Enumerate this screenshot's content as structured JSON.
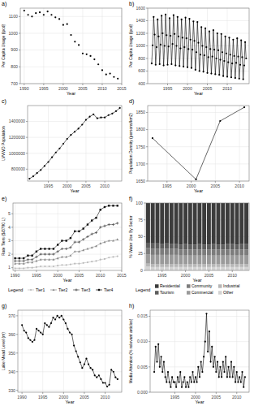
{
  "chart_data": [
    {
      "type": "scatter",
      "title": "a)",
      "x_label": "Year",
      "y_label": "Per Capita Usage (lpcd)",
      "color": "#000000",
      "grid": true,
      "x": [
        1990,
        1991,
        1992,
        1993,
        1994,
        1995,
        1996,
        1997,
        1998,
        1999,
        2000,
        2001,
        2002,
        2003,
        2004,
        2005,
        2006,
        2007,
        2008,
        2009,
        2010,
        2011,
        2012,
        2013,
        2014
      ],
      "values": [
        1135,
        1110,
        1100,
        1120,
        1125,
        1110,
        1130,
        1110,
        1095,
        1085,
        1050,
        1055,
        990,
        950,
        930,
        880,
        875,
        865,
        845,
        815,
        780,
        755,
        760,
        740,
        730
      ],
      "xlim": [
        1989,
        2015
      ],
      "xticks": [
        1990,
        1995,
        2000,
        2005,
        2010,
        2015
      ],
      "ylim": [
        700,
        1150
      ],
      "yticks": [
        700,
        800,
        900,
        1000,
        1100
      ]
    },
    {
      "type": "line",
      "title": "b)",
      "x_label": "Year",
      "y_label": "Per Capita Usage (lpcd)",
      "color": "#000000",
      "marker": "circle",
      "grid": true,
      "x": [
        1991,
        1991.25,
        1991.5,
        1991.75,
        1992,
        1992.25,
        1992.5,
        1992.75,
        1993,
        1993.25,
        1993.5,
        1993.75,
        1994,
        1994.25,
        1994.5,
        1994.75,
        1995,
        1995.25,
        1995.5,
        1995.75,
        1996,
        1996.25,
        1996.5,
        1996.75,
        1997,
        1997.25,
        1997.5,
        1997.75,
        1998,
        1998.25,
        1998.5,
        1998.75,
        1999,
        1999.25,
        1999.5,
        1999.75,
        2000,
        2000.25,
        2000.5,
        2000.75,
        2001,
        2001.25,
        2001.5,
        2001.75,
        2002,
        2002.25,
        2002.5,
        2002.75,
        2003,
        2003.25,
        2003.5,
        2003.75,
        2004,
        2004.25,
        2004.5,
        2004.75,
        2005,
        2005.25,
        2005.5,
        2005.75,
        2006,
        2006.25,
        2006.5,
        2006.75,
        2007,
        2007.25,
        2007.5,
        2007.75,
        2008,
        2008.25,
        2008.5,
        2008.75,
        2009,
        2009.25,
        2009.5,
        2009.75,
        2010,
        2010.25,
        2010.5,
        2010.75,
        2011,
        2011.25,
        2011.5,
        2011.75,
        2012,
        2012.25,
        2012.5,
        2012.75,
        2013,
        2013.25,
        2013.5,
        2013.75,
        2014,
        2014.25,
        2014.5,
        2014.75
      ],
      "values": [
        720,
        1010,
        1460,
        1180,
        700,
        980,
        1420,
        1150,
        710,
        1020,
        1480,
        1200,
        690,
        1000,
        1500,
        1170,
        700,
        990,
        1440,
        1160,
        710,
        1030,
        1490,
        1190,
        690,
        1000,
        1460,
        1150,
        680,
        960,
        1420,
        1130,
        670,
        980,
        1450,
        1120,
        660,
        950,
        1430,
        1100,
        650,
        940,
        1390,
        1080,
        620,
        900,
        1380,
        1050,
        600,
        860,
        1300,
        1000,
        590,
        850,
        1280,
        980,
        570,
        820,
        1230,
        950,
        560,
        830,
        1250,
        940,
        550,
        800,
        1200,
        930,
        540,
        780,
        1190,
        900,
        520,
        760,
        1150,
        880,
        510,
        740,
        1130,
        860,
        500,
        720,
        1100,
        840,
        490,
        730,
        1120,
        830,
        480,
        700,
        1090,
        820,
        470,
        690,
        1060,
        800
      ],
      "xlim": [
        1990,
        2015.5
      ],
      "xticks": [
        1995,
        2000,
        2005,
        2010
      ],
      "ylim": [
        400,
        1600
      ],
      "yticks": [
        400,
        600,
        800,
        1000,
        1200,
        1400,
        1600
      ]
    },
    {
      "type": "line",
      "title": "c)",
      "x_label": "Year",
      "y_label": "LVVWD Population",
      "color": "#000000",
      "marker": "circle",
      "grid": true,
      "x": [
        1990,
        1991,
        1992,
        1993,
        1994,
        1995,
        1996,
        1997,
        1998,
        1999,
        2000,
        2001,
        2002,
        2003,
        2004,
        2005,
        2006,
        2007,
        2008,
        2009,
        2010,
        2011,
        2012,
        2013,
        2014
      ],
      "values": [
        680000,
        710000,
        750000,
        790000,
        840000,
        890000,
        950000,
        1010000,
        1060000,
        1120000,
        1180000,
        1230000,
        1270000,
        1310000,
        1360000,
        1420000,
        1460000,
        1490000,
        1440000,
        1450000,
        1450000,
        1480000,
        1500000,
        1530000,
        1570000
      ],
      "xlim": [
        1989.5,
        2014.5
      ],
      "xticks": [
        1995,
        2000,
        2005,
        2010
      ],
      "ylim": [
        650000,
        1600000
      ],
      "yticks": [
        800000,
        1000000,
        1200000,
        1400000
      ]
    },
    {
      "type": "line",
      "title": "d)",
      "x_label": "Year",
      "y_label": "Population Density (persons/km2)",
      "color": "#000000",
      "marker": "circle",
      "grid": true,
      "x": [
        1992,
        2001,
        2006,
        2011
      ],
      "values": [
        1775,
        1655,
        1825,
        1865
      ],
      "xlim": [
        1991,
        2012
      ],
      "xticks": [
        1995,
        2000,
        2005,
        2010
      ],
      "ylim": [
        1650,
        1870
      ],
      "yticks": [
        1650,
        1700,
        1750,
        1800,
        1850
      ]
    },
    {
      "type": "line",
      "title": "e)",
      "x_label": "Year",
      "y_label": "Rate Tiers ($/3790 L)",
      "grid": true,
      "legend": "bottom",
      "legend_title": "Legend",
      "x": [
        1990,
        1991,
        1992,
        1993,
        1994,
        1995,
        1996,
        1997,
        1998,
        1999,
        2000,
        2001,
        2002,
        2003,
        2004,
        2005,
        2006,
        2007,
        2008,
        2009,
        2010,
        2011,
        2012,
        2013,
        2014
      ],
      "series": [
        {
          "name": "Tier1",
          "color": "#bbbbbb",
          "marker": "circle",
          "values": [
            0.95,
            0.95,
            0.95,
            1.0,
            1.0,
            1.05,
            1.1,
            1.1,
            1.1,
            1.1,
            1.15,
            1.2,
            1.2,
            1.25,
            1.3,
            1.3,
            1.35,
            1.4,
            1.45,
            1.5,
            1.6,
            1.65,
            1.75,
            1.8,
            1.85
          ]
        },
        {
          "name": "Tier2",
          "color": "#8c8c8c",
          "marker": "triangle",
          "values": [
            1.3,
            1.3,
            1.3,
            1.4,
            1.4,
            1.5,
            1.6,
            1.6,
            1.6,
            1.6,
            1.7,
            1.8,
            1.8,
            1.9,
            2.2,
            2.2,
            2.3,
            2.4,
            2.5,
            2.6,
            2.8,
            2.9,
            3.0,
            3.0,
            3.1
          ]
        },
        {
          "name": "Tier3",
          "color": "#555555",
          "marker": "plus",
          "values": [
            1.5,
            1.5,
            1.5,
            1.6,
            1.6,
            1.8,
            2.0,
            2.0,
            2.0,
            2.0,
            2.2,
            2.4,
            2.4,
            2.5,
            2.9,
            2.9,
            3.1,
            3.3,
            3.5,
            3.6,
            4.0,
            4.1,
            4.2,
            4.2,
            4.3
          ]
        },
        {
          "name": "Tier4",
          "color": "#111111",
          "marker": "square",
          "values": [
            1.7,
            1.7,
            1.7,
            1.9,
            1.9,
            2.2,
            2.4,
            2.4,
            2.4,
            2.4,
            2.7,
            3.0,
            3.0,
            3.2,
            3.7,
            3.7,
            3.9,
            4.2,
            4.5,
            4.7,
            5.3,
            5.5,
            5.6,
            5.6,
            5.6
          ]
        }
      ],
      "xlim": [
        1989.5,
        2015
      ],
      "xticks": [
        1990,
        1995,
        2000,
        2005,
        2010,
        2015
      ],
      "ylim": [
        0.8,
        5.8
      ],
      "yticks": [
        1,
        2,
        3,
        4,
        5
      ]
    },
    {
      "type": "bar",
      "title": "f)",
      "x_label": "Year",
      "y_label": "% Water Use By Sector",
      "stacked": true,
      "grid": true,
      "legend": "bottom",
      "legend_title": "Legend",
      "x": [
        1992,
        1993,
        1994,
        1995,
        1996,
        1997,
        1998,
        1999,
        2000,
        2001,
        2002,
        2003,
        2004,
        2005,
        2006,
        2007,
        2008,
        2009,
        2010,
        2011,
        2012,
        2013
      ],
      "series": [
        {
          "name": "Residential",
          "color": "#3c3c3c",
          "values": [
            59,
            60,
            60,
            61,
            60,
            61,
            61,
            62,
            61,
            62,
            62,
            61,
            62,
            62,
            61,
            62,
            62,
            61,
            61,
            62,
            61,
            61
          ]
        },
        {
          "name": "Tourism",
          "color": "#5e5e5e",
          "values": [
            8,
            8,
            8,
            7,
            8,
            7,
            7,
            7,
            8,
            7,
            7,
            8,
            7,
            7,
            8,
            7,
            7,
            8,
            8,
            7,
            8,
            8
          ]
        },
        {
          "name": "Community",
          "color": "#7c7c7c",
          "values": [
            9,
            9,
            9,
            9,
            9,
            9,
            9,
            9,
            9,
            9,
            9,
            9,
            9,
            9,
            9,
            9,
            9,
            9,
            9,
            9,
            9,
            9
          ]
        },
        {
          "name": "Commercial",
          "color": "#9a9a9a",
          "values": [
            14,
            14,
            14,
            14,
            14,
            14,
            14,
            13,
            13,
            13,
            13,
            13,
            13,
            13,
            13,
            13,
            13,
            13,
            13,
            13,
            13,
            13
          ]
        },
        {
          "name": "Industrial",
          "color": "#b7b7b7",
          "values": [
            4,
            4,
            4,
            4,
            4,
            4,
            4,
            4,
            4,
            4,
            4,
            4,
            4,
            4,
            4,
            4,
            4,
            4,
            4,
            4,
            4,
            4
          ]
        },
        {
          "name": "Other",
          "color": "#d3d3d3",
          "values": [
            6,
            5,
            5,
            5,
            5,
            5,
            5,
            5,
            5,
            5,
            5,
            5,
            5,
            5,
            5,
            5,
            5,
            5,
            5,
            5,
            5,
            5
          ]
        }
      ],
      "xlim": [
        1991.4,
        2013.6
      ],
      "xticks": [
        1995,
        2000,
        2005,
        2010
      ],
      "ylim": [
        0,
        100
      ],
      "yticks": [
        0,
        25,
        50,
        75,
        100
      ]
    },
    {
      "type": "line",
      "title": "g)",
      "x_label": "Year",
      "y_label": "Lake Mead Level (m)",
      "color": "#000000",
      "marker": "circle",
      "grid": true,
      "x": [
        1990,
        1990.5,
        1991,
        1991.5,
        1992,
        1992.5,
        1993,
        1993.5,
        1994,
        1994.5,
        1995,
        1995.5,
        1996,
        1996.5,
        1997,
        1997.5,
        1998,
        1998.5,
        1999,
        1999.5,
        2000,
        2000.5,
        2001,
        2001.5,
        2002,
        2002.5,
        2003,
        2003.5,
        2004,
        2004.5,
        2005,
        2005.5,
        2006,
        2006.5,
        2007,
        2007.5,
        2008,
        2008.5,
        2009,
        2009.5,
        2010,
        2010.5,
        2011,
        2011.5,
        2012,
        2012.5,
        2013
      ],
      "values": [
        365,
        362,
        361,
        358,
        357,
        356,
        357,
        363,
        362,
        361,
        360,
        366,
        365,
        364,
        366,
        369,
        368,
        370,
        369,
        370,
        368,
        366,
        363,
        361,
        360,
        354,
        351,
        348,
        345,
        342,
        344,
        347,
        344,
        342,
        341,
        338,
        337,
        338,
        336,
        334,
        334,
        332,
        333,
        341,
        340,
        337,
        336
      ],
      "xlim": [
        1989,
        2014
      ],
      "xticks": [
        1990,
        1995,
        2000,
        2005,
        2010
      ],
      "ylim": [
        329,
        373
      ],
      "yticks": [
        330,
        340,
        350,
        360,
        370
      ]
    },
    {
      "type": "line",
      "title": "h)",
      "x_label": "Year",
      "y_label": "Media Attention (% relevant articles)",
      "color": "#000000",
      "marker": "circle",
      "grid": true,
      "x": [
        1990,
        1990.33,
        1990.67,
        1991,
        1991.33,
        1991.67,
        1992,
        1992.33,
        1992.67,
        1993,
        1993.33,
        1993.67,
        1994,
        1994.33,
        1994.67,
        1995,
        1995.33,
        1995.67,
        1996,
        1996.33,
        1996.67,
        1997,
        1997.33,
        1997.67,
        1998,
        1998.33,
        1998.67,
        1999,
        1999.33,
        1999.67,
        2000,
        2000.33,
        2000.67,
        2001,
        2001.33,
        2001.67,
        2002,
        2002.33,
        2002.67,
        2003,
        2003.33,
        2003.67,
        2004,
        2004.33,
        2004.67,
        2005,
        2005.33,
        2005.67,
        2006,
        2006.33,
        2006.67,
        2007,
        2007.33,
        2007.67,
        2008,
        2008.33,
        2008.67,
        2009,
        2009.33,
        2009.67,
        2010,
        2010.33,
        2010.67,
        2011,
        2011.33,
        2011.67,
        2012
      ],
      "values": [
        0.004,
        0.009,
        0.006,
        0.0095,
        0.005,
        0.007,
        0.004,
        0.006,
        0.003,
        0.002,
        0.004,
        0.002,
        0.001,
        0.003,
        0.002,
        0.002,
        0.001,
        0.003,
        0.002,
        0.004,
        0.001,
        0.002,
        0.003,
        0.001,
        0.002,
        0.001,
        0.003,
        0.002,
        0.004,
        0.002,
        0.003,
        0.002,
        0.005,
        0.003,
        0.006,
        0.004,
        0.007,
        0.01,
        0.0155,
        0.008,
        0.012,
        0.006,
        0.009,
        0.005,
        0.007,
        0.004,
        0.006,
        0.003,
        0.005,
        0.003,
        0.006,
        0.004,
        0.007,
        0.003,
        0.005,
        0.003,
        0.006,
        0.003,
        0.005,
        0.002,
        0.004,
        0.002,
        0.003,
        0.002,
        0.004,
        0.001,
        0.003
      ],
      "xlim": [
        1989,
        2013
      ],
      "xticks": [
        1995,
        2000,
        2005,
        2010
      ],
      "ylim": [
        0,
        0.0162
      ],
      "yticks": [
        {
          "value": 0,
          "label": "0.000"
        },
        0.005,
        {
          "value": 0.01,
          "label": "0.010"
        },
        0.015
      ]
    }
  ]
}
